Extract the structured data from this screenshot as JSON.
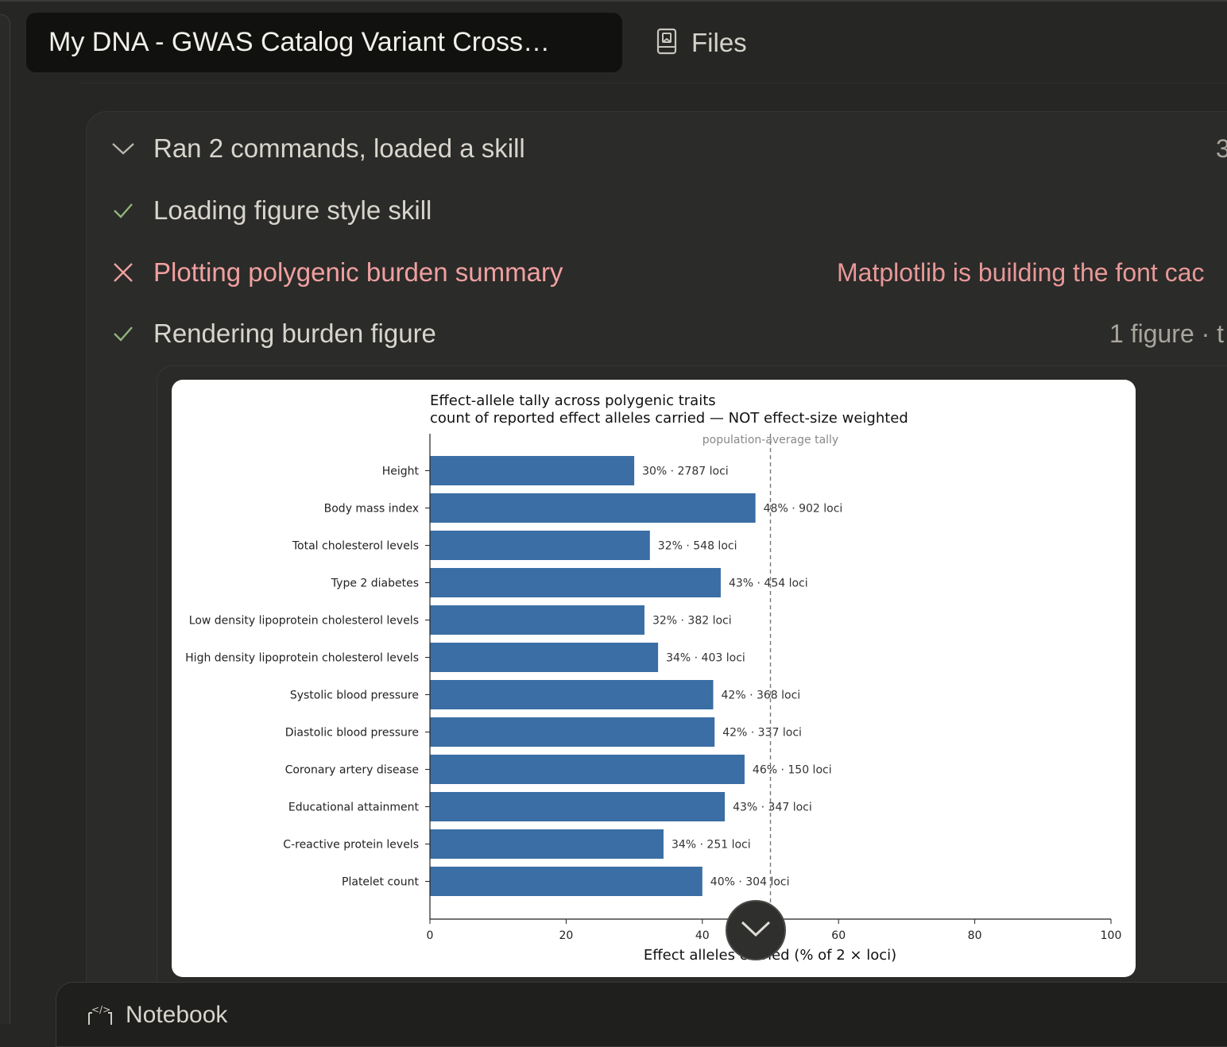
{
  "header": {
    "title": "My DNA - GWAS Catalog Variant Cross…",
    "files_label": "Files"
  },
  "steps": [
    {
      "label": "Ran 2 commands, loaded a skill",
      "status": "collapsed",
      "meta": "3"
    },
    {
      "label": "Loading figure style skill",
      "status": "success",
      "meta": ""
    },
    {
      "label": "Plotting polygenic burden summary",
      "status": "error",
      "meta": "Matplotlib is building the font cac"
    },
    {
      "label": "Rendering burden figure",
      "status": "success",
      "meta": "1 figure · t"
    }
  ],
  "notebook": {
    "label": "Notebook"
  },
  "colors": {
    "bar": "#3a6ea5",
    "success": "#8fb47a",
    "error": "#f0a0a0"
  },
  "chart_data": {
    "type": "bar",
    "orientation": "horizontal",
    "title": "Effect-allele tally across polygenic traits",
    "subtitle": "count of reported effect alleles carried — NOT effect-size weighted",
    "xlabel": "Effect alleles carried (% of 2 × loci)",
    "ylabel": "",
    "xlim": [
      0,
      100
    ],
    "xticks": [
      "0",
      "20",
      "40",
      "60",
      "80",
      "100"
    ],
    "reference_line": {
      "x": 50,
      "label": "population-average tally",
      "style": "dashed"
    },
    "categories": [
      "Height",
      "Body mass index",
      "Total cholesterol levels",
      "Type 2 diabetes",
      "Low density lipoprotein cholesterol levels",
      "High density lipoprotein cholesterol levels",
      "Systolic blood pressure",
      "Diastolic blood pressure",
      "Coronary artery disease",
      "Educational attainment",
      "C-reactive protein levels",
      "Platelet count"
    ],
    "values": [
      30,
      47.8,
      32.3,
      42.7,
      31.5,
      33.5,
      41.6,
      41.8,
      46.2,
      43.3,
      34.3,
      40
    ],
    "bar_labels": [
      "30%  ·  2787 loci",
      "48%  ·  902 loci",
      "32%  ·  548 loci",
      "43%  ·  454 loci",
      "32%  ·  382 loci",
      "34%  ·  403 loci",
      "42%  ·  368 loci",
      "42%  ·  337 loci",
      "46%  ·  150 loci",
      "43%  ·  347 loci",
      "34%  ·  251 loci",
      "40%  ·  304 loci"
    ],
    "grid": false,
    "legend": "none"
  }
}
